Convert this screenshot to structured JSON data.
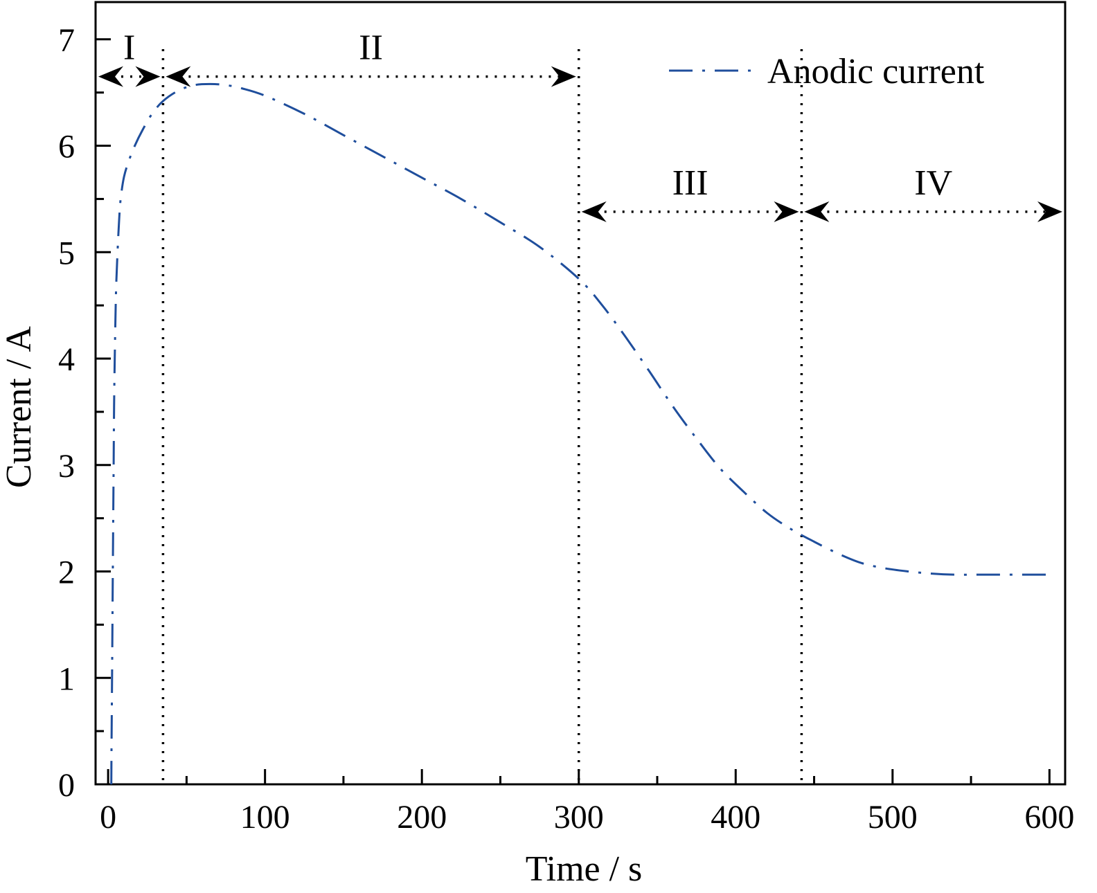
{
  "chart_data": {
    "type": "line",
    "title": "",
    "xlabel": "Time / s",
    "ylabel": "Current / A",
    "xlim": [
      -8,
      610
    ],
    "ylim": [
      0,
      7.35
    ],
    "xticks": [
      0,
      100,
      200,
      300,
      400,
      500,
      600
    ],
    "xtick_labels": [
      "0",
      "100",
      "200",
      "300",
      "400",
      "500",
      "600"
    ],
    "x_minor_ticks": [
      50,
      150,
      250,
      350,
      450,
      550
    ],
    "yticks": [
      0,
      1,
      2,
      3,
      4,
      5,
      6,
      7
    ],
    "ytick_labels": [
      "0",
      "1",
      "2",
      "3",
      "4",
      "5",
      "6",
      "7"
    ],
    "grid": false,
    "legend_position": "top-right",
    "series": [
      {
        "name": "Anodic current",
        "color": "#1f4e9c",
        "line_style": "dash-dot",
        "x": [
          2,
          2.5,
          3,
          3.5,
          4,
          5,
          6,
          7,
          8,
          10,
          13,
          17,
          22,
          28,
          35,
          45,
          55,
          65,
          75,
          85,
          100,
          125,
          150,
          175,
          200,
          225,
          250,
          275,
          300,
          315,
          330,
          345,
          360,
          375,
          390,
          405,
          420,
          435,
          450,
          465,
          480,
          495,
          510,
          525,
          540,
          555,
          570,
          585,
          600
        ],
        "y": [
          0,
          1.0,
          2.0,
          3.0,
          3.8,
          4.6,
          5.0,
          5.3,
          5.5,
          5.7,
          5.85,
          6.0,
          6.15,
          6.3,
          6.42,
          6.52,
          6.57,
          6.58,
          6.57,
          6.54,
          6.47,
          6.3,
          6.1,
          5.9,
          5.7,
          5.5,
          5.28,
          5.05,
          4.75,
          4.5,
          4.2,
          3.88,
          3.55,
          3.25,
          2.97,
          2.75,
          2.55,
          2.4,
          2.28,
          2.17,
          2.08,
          2.03,
          2.0,
          1.98,
          1.97,
          1.97,
          1.97,
          1.97,
          1.97
        ]
      }
    ],
    "boundaries": [
      35,
      300,
      442
    ],
    "regions": [
      {
        "label": "I",
        "x_start": -8,
        "x_end": 35,
        "arrow_y": 6.65
      },
      {
        "label": "II",
        "x_start": 35,
        "x_end": 300,
        "arrow_y": 6.65
      },
      {
        "label": "III",
        "x_start": 300,
        "x_end": 442,
        "arrow_y": 5.38
      },
      {
        "label": "IV",
        "x_start": 442,
        "x_end": 610,
        "arrow_y": 5.38
      }
    ]
  }
}
